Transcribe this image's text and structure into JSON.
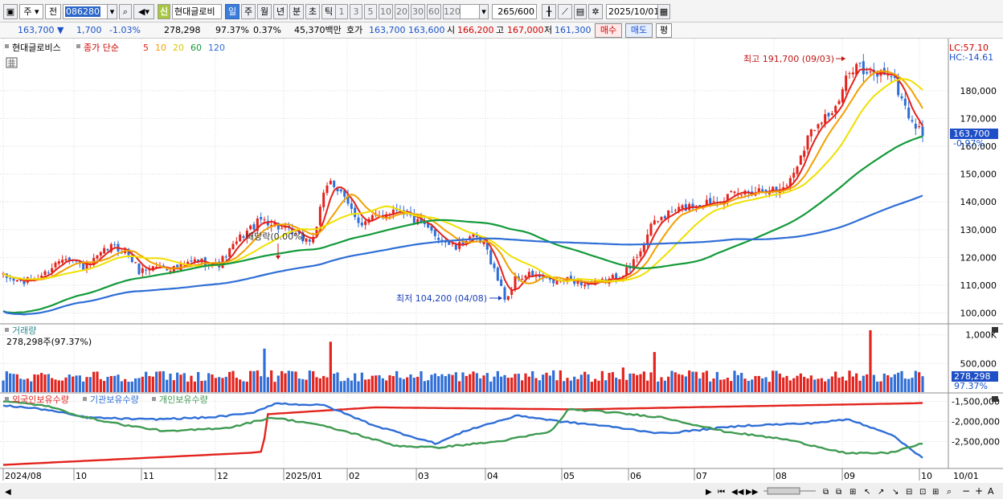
{
  "toolbar": {
    "period_type": "주",
    "compare": "전",
    "stock_code": "086280",
    "credit_badge": "신",
    "stock_name": "현대글로비",
    "intervals": [
      {
        "label": "일",
        "active": true
      },
      {
        "label": "주",
        "active": false
      },
      {
        "label": "월",
        "active": false
      },
      {
        "label": "년",
        "active": false
      },
      {
        "label": "분",
        "active": false
      },
      {
        "label": "초",
        "active": false
      },
      {
        "label": "틱",
        "active": false
      }
    ],
    "minute_options": [
      "1",
      "3",
      "5",
      "10",
      "20",
      "30",
      "60",
      "120"
    ],
    "count": "265",
    "count_total": "/600",
    "date": "2025/10/01"
  },
  "quote": {
    "price": "163,700 ▼",
    "change": "1,700",
    "change_pct": "-1.03%",
    "volume": "278,298",
    "volume_ratio": "97.37%",
    "turnover": "0.37%",
    "amount": "45,370백만",
    "bid_label": "호가",
    "bid": "163,700",
    "ask": "163,600",
    "open_label": "시",
    "open": "166,200",
    "high_label": "고",
    "high": "167,000",
    "low_label": "저",
    "low": "161,300",
    "buy_button": "매수",
    "sell_button": "매도",
    "eval_button": "평"
  },
  "legend": {
    "name": "현대글로비스",
    "price_label": "종가 단순",
    "ma": [
      {
        "label": "5",
        "color": "#e3231d"
      },
      {
        "label": "10",
        "color": "#f2a000"
      },
      {
        "label": "20",
        "color": "#f0e000"
      },
      {
        "label": "60",
        "color": "#139a3a"
      },
      {
        "label": "120",
        "color": "#2f6ed6"
      }
    ]
  },
  "price_axis": {
    "lc": "LC:57.10",
    "hc": "HC:-14.61",
    "current": "163,700",
    "current_pct": "-0.97%"
  },
  "annotations": {
    "high": "최고 191,700 (09/03)",
    "low": "최저 104,200 (04/08)",
    "dividend": "배당락(0.00%)"
  },
  "volume_panel": {
    "title": "거래량",
    "value": "278,298주(97.37%)",
    "current": "278,298",
    "current_pct": "97.37%"
  },
  "holding_panel": {
    "legend": [
      {
        "label": "외국인보유수량",
        "color": "#e3231d"
      },
      {
        "label": "기관보유수량",
        "color": "#2f6ed6"
      },
      {
        "label": "개인보유수량",
        "color": "#3f9a52"
      }
    ]
  },
  "footer": {
    "date_label": "10/01"
  },
  "colors": {
    "up": "#e3231d",
    "down": "#2f6ed6",
    "grid": "#d9d9d9",
    "axis_current": "#1f4fc7"
  },
  "chart_data": [
    {
      "type": "line",
      "title": "현대글로비스 일봉",
      "x": [
        "2024/08",
        "10",
        "11",
        "12",
        "2025/01",
        "02",
        "03",
        "04",
        "05",
        "06",
        "07",
        "08",
        "09",
        "10"
      ],
      "ylim": [
        97000,
        197000
      ],
      "yticks": [
        100000,
        110000,
        120000,
        130000,
        140000,
        150000,
        160000,
        170000,
        180000
      ],
      "ytick_labels": [
        "100,000",
        "110,000",
        "120,000",
        "130,000",
        "140,000",
        "150,000",
        "160,000",
        "170,000",
        "180,000"
      ],
      "anchors": [
        [
          0,
          113
        ],
        [
          0.05,
          111
        ],
        [
          0.1,
          114
        ],
        [
          0.15,
          121
        ],
        [
          0.2,
          116
        ],
        [
          0.26,
          124
        ],
        [
          0.3,
          122
        ],
        [
          0.33,
          115
        ],
        [
          0.37,
          117
        ],
        [
          0.42,
          116
        ],
        [
          0.47,
          119
        ],
        [
          0.52,
          117
        ],
        [
          0.58,
          128
        ],
        [
          0.63,
          134
        ],
        [
          0.68,
          130
        ],
        [
          0.72,
          127
        ],
        [
          0.75,
          126
        ],
        [
          0.79,
          149
        ],
        [
          0.83,
          140
        ],
        [
          0.87,
          132
        ],
        [
          0.91,
          135
        ],
        [
          0.96,
          138
        ],
        [
          1.0,
          133
        ],
        [
          1.04,
          129
        ],
        [
          1.07,
          126
        ],
        [
          1.1,
          123
        ],
        [
          1.13,
          128
        ],
        [
          1.17,
          124
        ],
        [
          1.2,
          112
        ],
        [
          1.22,
          104.2
        ],
        [
          1.24,
          112
        ],
        [
          1.28,
          114
        ],
        [
          1.33,
          111
        ],
        [
          1.38,
          112
        ],
        [
          1.42,
          110
        ],
        [
          1.47,
          112
        ],
        [
          1.52,
          116
        ],
        [
          1.58,
          133
        ],
        [
          1.63,
          137
        ],
        [
          1.68,
          139
        ],
        [
          1.73,
          141
        ],
        [
          1.79,
          143
        ],
        [
          1.85,
          145
        ],
        [
          1.88,
          144
        ],
        [
          1.91,
          148
        ],
        [
          1.95,
          163
        ],
        [
          1.98,
          170
        ],
        [
          2.02,
          173
        ],
        [
          2.04,
          182
        ],
        [
          2.07,
          191.7
        ],
        [
          2.09,
          185
        ],
        [
          2.12,
          186
        ],
        [
          2.15,
          187
        ],
        [
          2.2,
          170
        ],
        [
          2.23,
          163.7
        ]
      ],
      "series": [
        {
          "name": "5",
          "values_smoothing": 5
        },
        {
          "name": "10",
          "values_smoothing": 10
        },
        {
          "name": "20",
          "values_smoothing": 20
        },
        {
          "name": "60",
          "values_smoothing": 60
        },
        {
          "name": "120",
          "values_smoothing": 120
        }
      ]
    },
    {
      "type": "bar",
      "title": "거래량",
      "ylim": [
        0,
        1150000
      ],
      "yticks": [
        500000,
        1000000
      ],
      "ytick_labels": [
        "500,000",
        "1,000K"
      ],
      "spikes": [
        [
          0.63,
          760000
        ],
        [
          0.79,
          880000
        ],
        [
          1.5,
          430000
        ],
        [
          1.58,
          700000
        ],
        [
          2.1,
          1080000
        ]
      ]
    },
    {
      "type": "line",
      "title": "보유수량",
      "ylim": [
        -3150000,
        -1350000
      ],
      "yticks": [
        -1500000,
        -2000000,
        -2500000
      ],
      "ytick_labels": [
        "-1,500,000",
        "-2,000,000",
        "-2,500,000"
      ],
      "series": [
        {
          "name": "외국인보유수량",
          "anchors": [
            [
              0,
              -3080000
            ],
            [
              0.6,
              -2780000
            ],
            [
              0.63,
              -2750000
            ],
            [
              0.64,
              -1820000
            ],
            [
              0.9,
              -1650000
            ],
            [
              1.4,
              -1700000
            ],
            [
              1.7,
              -1640000
            ],
            [
              2.2,
              -1550000
            ],
            [
              2.23,
              -1540000
            ]
          ]
        },
        {
          "name": "기관보유수량",
          "anchors": [
            [
              0,
              -1600000
            ],
            [
              0.1,
              -1700000
            ],
            [
              0.2,
              -1900000
            ],
            [
              0.35,
              -1950000
            ],
            [
              0.5,
              -1900000
            ],
            [
              0.6,
              -1800000
            ],
            [
              0.66,
              -1550000
            ],
            [
              0.78,
              -1600000
            ],
            [
              0.9,
              -2100000
            ],
            [
              1.05,
              -2550000
            ],
            [
              1.13,
              -2200000
            ],
            [
              1.25,
              -1850000
            ],
            [
              1.35,
              -2000000
            ],
            [
              1.45,
              -2100000
            ],
            [
              1.6,
              -2300000
            ],
            [
              1.8,
              -2100000
            ],
            [
              1.95,
              -2050000
            ],
            [
              2.05,
              -1950000
            ],
            [
              2.15,
              -2300000
            ],
            [
              2.23,
              -2900000
            ]
          ]
        },
        {
          "name": "개인보유수량",
          "anchors": [
            [
              0,
              -1500000
            ],
            [
              0.1,
              -1600000
            ],
            [
              0.2,
              -1900000
            ],
            [
              0.3,
              -2100000
            ],
            [
              0.4,
              -2250000
            ],
            [
              0.55,
              -2150000
            ],
            [
              0.65,
              -1900000
            ],
            [
              0.75,
              -2050000
            ],
            [
              0.85,
              -2300000
            ],
            [
              0.95,
              -2600000
            ],
            [
              1.05,
              -2650000
            ],
            [
              1.2,
              -2500000
            ],
            [
              1.33,
              -2250000
            ],
            [
              1.37,
              -1700000
            ],
            [
              1.45,
              -1750000
            ],
            [
              1.6,
              -1900000
            ],
            [
              1.75,
              -2250000
            ],
            [
              1.9,
              -2450000
            ],
            [
              2.05,
              -2800000
            ],
            [
              2.15,
              -2780000
            ],
            [
              2.23,
              -2550000
            ]
          ]
        }
      ]
    }
  ]
}
